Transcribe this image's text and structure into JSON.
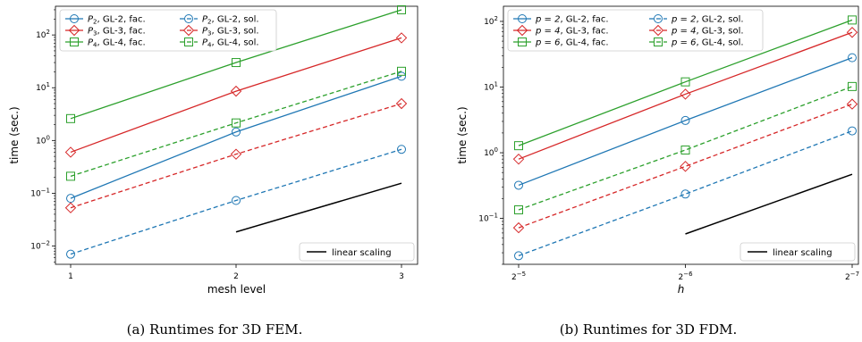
{
  "chart_data": [
    {
      "type": "line",
      "caption": "(a) Runtimes for 3D FEM.",
      "xlabel": "mesh level",
      "ylabel": "time (sec.)",
      "x": [
        1,
        2,
        3
      ],
      "x_tick_labels": [
        "1",
        "2",
        "3"
      ],
      "yscale": "log",
      "ylim": [
        0.0045,
        350
      ],
      "y_tick_labels": [
        {
          "base": "10",
          "exp": "−2"
        },
        {
          "base": "10",
          "exp": "−1"
        },
        {
          "base": "10",
          "exp": "0"
        },
        {
          "base": "10",
          "exp": "1"
        },
        {
          "base": "10",
          "exp": "2"
        }
      ],
      "y_tick_values": [
        0.01,
        0.1,
        1,
        10,
        100
      ],
      "legend_position": "top-left",
      "series": [
        {
          "name": "P_2, GL-2, fac.",
          "name_main": "P",
          "name_sub": "2",
          "name_rest": ", GL-2, fac.",
          "values": [
            0.08,
            1.45,
            16.5
          ],
          "color": "#1f77b4",
          "marker": "circle",
          "style": "solid"
        },
        {
          "name": "P_3, GL-3, fac.",
          "name_main": "P",
          "name_sub": "3",
          "name_rest": ", GL-3, fac.",
          "values": [
            0.6,
            8.6,
            88
          ],
          "color": "#d62728",
          "marker": "diamond",
          "style": "solid"
        },
        {
          "name": "P_4, GL-4, fac.",
          "name_main": "P",
          "name_sub": "4",
          "name_rest": ", GL-4, fac.",
          "values": [
            2.6,
            30,
            300
          ],
          "color": "#2ca02c",
          "marker": "square",
          "style": "solid"
        },
        {
          "name": "P_2, GL-2, sol.",
          "name_main": "P",
          "name_sub": "2",
          "name_rest": ", GL-2, sol.",
          "values": [
            0.007,
            0.073,
            0.68
          ],
          "color": "#1f77b4",
          "marker": "circle",
          "style": "dashed"
        },
        {
          "name": "P_3, GL-3, sol.",
          "name_main": "P",
          "name_sub": "3",
          "name_rest": ", GL-3, sol.",
          "values": [
            0.053,
            0.55,
            5.0
          ],
          "color": "#d62728",
          "marker": "diamond",
          "style": "dashed"
        },
        {
          "name": "P_4, GL-4, sol.",
          "name_main": "P",
          "name_sub": "4",
          "name_rest": ", GL-4, sol.",
          "values": [
            0.21,
            2.15,
            20.5
          ],
          "color": "#2ca02c",
          "marker": "square",
          "style": "dashed"
        }
      ],
      "reference_line": {
        "name": "linear scaling",
        "x": [
          2,
          3
        ],
        "values": [
          0.0185,
          0.155
        ],
        "color": "#000000"
      },
      "reference_legend_position": "bottom-right"
    },
    {
      "type": "line",
      "caption": "(b) Runtimes for 3D FDM.",
      "xlabel": "h",
      "ylabel": "time (sec.)",
      "x": [
        5,
        6,
        7
      ],
      "x_tick_labels": [
        {
          "base": "2",
          "exp": "−5"
        },
        {
          "base": "2",
          "exp": "−6"
        },
        {
          "base": "2",
          "exp": "−7"
        }
      ],
      "yscale": "log",
      "ylim": [
        0.02,
        170
      ],
      "y_tick_labels": [
        {
          "base": "10",
          "exp": "−1"
        },
        {
          "base": "10",
          "exp": "0"
        },
        {
          "base": "10",
          "exp": "1"
        },
        {
          "base": "10",
          "exp": "2"
        }
      ],
      "y_tick_values": [
        0.1,
        1,
        10,
        100
      ],
      "legend_position": "top-left",
      "series": [
        {
          "name": "p = 2, GL-2, fac.",
          "name_main": "p = 2",
          "name_sub": "",
          "name_rest": ", GL-2, fac.",
          "values": [
            0.32,
            3.1,
            28
          ],
          "color": "#1f77b4",
          "marker": "circle",
          "style": "solid"
        },
        {
          "name": "p = 4, GL-3, fac.",
          "name_main": "p = 4",
          "name_sub": "",
          "name_rest": ", GL-3, fac.",
          "values": [
            0.8,
            7.8,
            68
          ],
          "color": "#d62728",
          "marker": "diamond",
          "style": "solid"
        },
        {
          "name": "p = 6, GL-4, fac.",
          "name_main": "p = 6",
          "name_sub": "",
          "name_rest": ", GL-4, fac.",
          "values": [
            1.28,
            12,
            105
          ],
          "color": "#2ca02c",
          "marker": "square",
          "style": "solid"
        },
        {
          "name": "p = 2, GL-2, sol.",
          "name_main": "p = 2",
          "name_sub": "",
          "name_rest": ", GL-2, sol.",
          "values": [
            0.027,
            0.235,
            2.15
          ],
          "color": "#1f77b4",
          "marker": "circle",
          "style": "dashed"
        },
        {
          "name": "p = 4, GL-3, sol.",
          "name_main": "p = 4",
          "name_sub": "",
          "name_rest": ", GL-3, sol.",
          "values": [
            0.072,
            0.62,
            5.5
          ],
          "color": "#d62728",
          "marker": "diamond",
          "style": "dashed"
        },
        {
          "name": "p = 6, GL-4, sol.",
          "name_main": "p = 6",
          "name_sub": "",
          "name_rest": ", GL-4, sol.",
          "values": [
            0.135,
            1.1,
            10.2
          ],
          "color": "#2ca02c",
          "marker": "square",
          "style": "dashed"
        }
      ],
      "reference_line": {
        "name": "linear scaling",
        "x": [
          6,
          7
        ],
        "values": [
          0.058,
          0.47
        ],
        "color": "#000000"
      },
      "reference_legend_position": "bottom-right"
    }
  ]
}
